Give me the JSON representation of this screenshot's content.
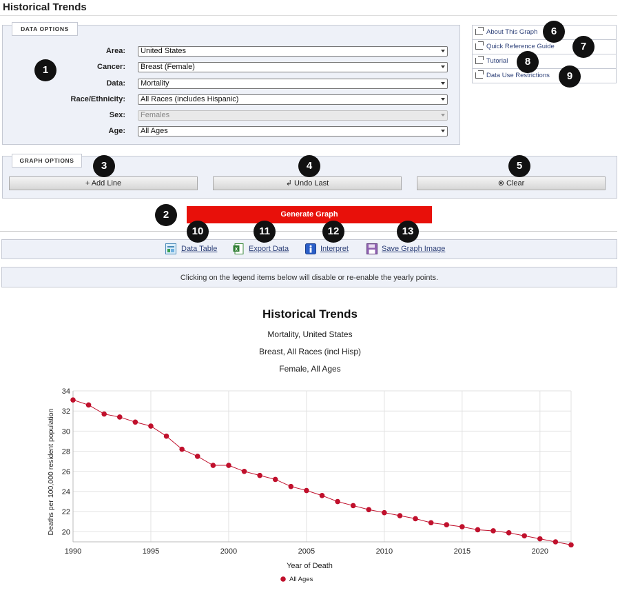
{
  "page": {
    "title": "Historical Trends"
  },
  "data_options": {
    "legend": "Data Options",
    "fields": [
      {
        "label": "Area:",
        "value": "United States",
        "disabled": false
      },
      {
        "label": "Cancer:",
        "value": "Breast (Female)",
        "disabled": false
      },
      {
        "label": "Data:",
        "value": "Mortality",
        "disabled": false
      },
      {
        "label": "Race/Ethnicity:",
        "value": "All Races (includes Hispanic)",
        "disabled": false
      },
      {
        "label": "Sex:",
        "value": "Females",
        "disabled": true
      },
      {
        "label": "Age:",
        "value": "All Ages",
        "disabled": false
      }
    ]
  },
  "graph_options": {
    "legend": "Graph Options",
    "add_line": "+ Add Line",
    "undo_last": "↲ Undo Last",
    "clear": "⊗ Clear"
  },
  "side_links": [
    {
      "label": "About This Graph",
      "icon": "external-link-icon"
    },
    {
      "label": "Quick Reference Guide",
      "icon": "external-link-icon"
    },
    {
      "label": "Tutorial",
      "icon": "external-link-icon"
    },
    {
      "label": "Data Use Restrictions",
      "icon": "external-link-icon"
    }
  ],
  "generate_button": "Generate Graph",
  "toolbar": {
    "data_table": "Data Table",
    "export_data": "Export Data",
    "interpret": "Interpret",
    "save_image": "Save Graph Image"
  },
  "notice": "Clicking on the legend items below will disable or re-enable the yearly points.",
  "badges": [
    "1",
    "2",
    "3",
    "4",
    "5",
    "6",
    "7",
    "8",
    "9",
    "10",
    "11",
    "12",
    "13"
  ],
  "colors": {
    "accent_red": "#e8100a",
    "series": "#c0102c",
    "panel_bg": "#eef1f8",
    "link": "#30437a"
  },
  "chart_data": {
    "type": "line",
    "title": "Historical Trends",
    "subtitles": [
      "Mortality, United States",
      "Breast, All Races (incl Hisp)",
      "Female, All Ages"
    ],
    "xlabel": "Year of Death",
    "ylabel": "Deaths per 100,000 resident population",
    "xlim": [
      1990,
      2022
    ],
    "ylim": [
      19,
      34
    ],
    "xticks": [
      1990,
      1995,
      2000,
      2005,
      2010,
      2015,
      2020
    ],
    "yticks": [
      20,
      22,
      24,
      26,
      28,
      30,
      32,
      34
    ],
    "grid": true,
    "legend_position": "bottom",
    "series": [
      {
        "name": "All Ages",
        "x": [
          1990,
          1991,
          1992,
          1993,
          1994,
          1995,
          1996,
          1997,
          1998,
          1999,
          2000,
          2001,
          2002,
          2003,
          2004,
          2005,
          2006,
          2007,
          2008,
          2009,
          2010,
          2011,
          2012,
          2013,
          2014,
          2015,
          2016,
          2017,
          2018,
          2019,
          2020,
          2021,
          2022
        ],
        "y": [
          33.1,
          32.6,
          31.7,
          31.4,
          30.9,
          30.5,
          29.5,
          28.2,
          27.5,
          26.6,
          26.6,
          26.0,
          25.6,
          25.2,
          24.5,
          24.1,
          23.6,
          23.0,
          22.6,
          22.2,
          21.9,
          21.6,
          21.3,
          20.9,
          20.7,
          20.5,
          20.2,
          20.1,
          19.9,
          19.6,
          19.3,
          19.0,
          18.7
        ]
      }
    ]
  }
}
